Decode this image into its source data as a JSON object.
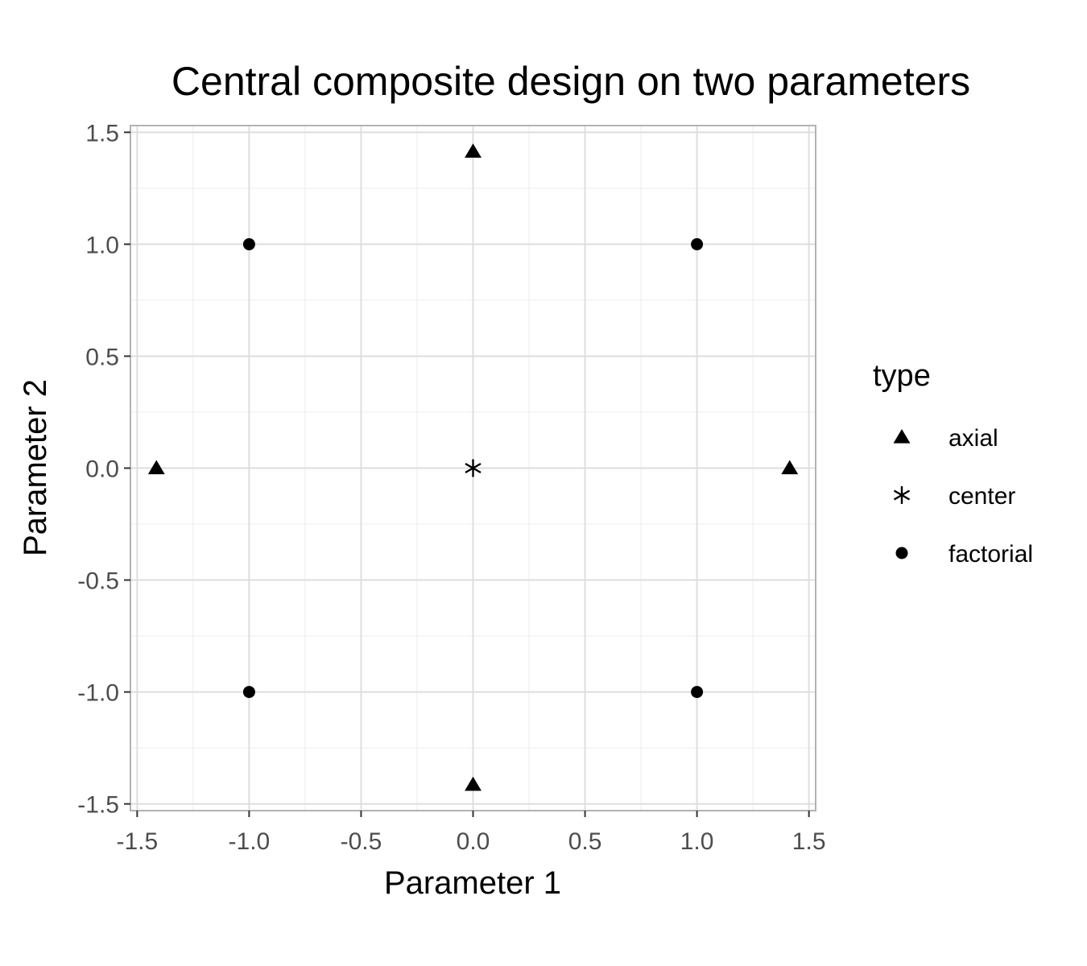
{
  "chart_data": {
    "type": "scatter",
    "title": "Central composite design on two parameters",
    "xlabel": "Parameter 1",
    "ylabel": "Parameter 2",
    "xlim": [
      -1.53,
      1.53
    ],
    "ylim": [
      -1.53,
      1.53
    ],
    "x_ticks": [
      -1.5,
      -1.0,
      -0.5,
      0.0,
      0.5,
      1.0,
      1.5
    ],
    "x_tick_labels": [
      "-1.5",
      "-1.0",
      "-0.5",
      "0.0",
      "0.5",
      "1.0",
      "1.5"
    ],
    "y_ticks": [
      -1.5,
      -1.0,
      -0.5,
      0.0,
      0.5,
      1.0,
      1.5
    ],
    "y_tick_labels": [
      "-1.5",
      "-1.0",
      "-0.5",
      "0.0",
      "0.5",
      "1.0",
      "1.5"
    ],
    "grid": true,
    "legend": {
      "title": "type",
      "position": "right",
      "entries": [
        {
          "label": "axial",
          "shape": "triangle"
        },
        {
          "label": "center",
          "shape": "asterisk"
        },
        {
          "label": "factorial",
          "shape": "circle"
        }
      ]
    },
    "points": [
      {
        "x": -1.0,
        "y": -1.0,
        "type": "factorial"
      },
      {
        "x": 1.0,
        "y": -1.0,
        "type": "factorial"
      },
      {
        "x": -1.0,
        "y": 1.0,
        "type": "factorial"
      },
      {
        "x": 1.0,
        "y": 1.0,
        "type": "factorial"
      },
      {
        "x": -1.414,
        "y": 0.0,
        "type": "axial"
      },
      {
        "x": 1.414,
        "y": 0.0,
        "type": "axial"
      },
      {
        "x": 0.0,
        "y": -1.414,
        "type": "axial"
      },
      {
        "x": 0.0,
        "y": 1.414,
        "type": "axial"
      },
      {
        "x": 0.0,
        "y": 0.0,
        "type": "center"
      }
    ],
    "marker_color": "#000000"
  }
}
